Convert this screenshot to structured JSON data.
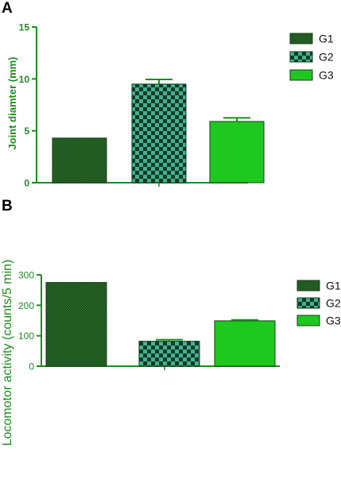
{
  "chart_data": [
    {
      "type": "bar",
      "panel_label": "A",
      "categories": [
        "G1",
        "G2",
        "G3"
      ],
      "values": [
        4.3,
        9.5,
        5.9
      ],
      "errors": [
        0.0,
        0.45,
        0.35
      ],
      "xlabel": "",
      "ylabel": "Joint diamter (mm)",
      "ylim": [
        0,
        15
      ],
      "yticks": [
        0,
        5,
        10,
        15
      ],
      "grid": false,
      "legend": {
        "position": "right",
        "entries": [
          "G1",
          "G2",
          "G3"
        ]
      }
    },
    {
      "type": "bar",
      "panel_label": "B",
      "categories": [
        "G1",
        "G2",
        "G3"
      ],
      "values": [
        275,
        82,
        149
      ],
      "errors": [
        0,
        5,
        3
      ],
      "xlabel": "",
      "ylabel": "Locomotor activity (counts/5 min)",
      "ylim": [
        0,
        300
      ],
      "yticks": [
        0,
        100,
        200,
        300
      ],
      "grid": false,
      "legend": {
        "position": "right",
        "entries": [
          "G1",
          "G2",
          "G3"
        ]
      }
    }
  ],
  "colors": {
    "axis": "#1e8c1e",
    "g1_fill": "#173d17",
    "g1_check": "#2f7a2f",
    "g2_fill": "#0b3a2c",
    "g2_check": "#45b08a",
    "g3_fill": "#1ec81e"
  }
}
